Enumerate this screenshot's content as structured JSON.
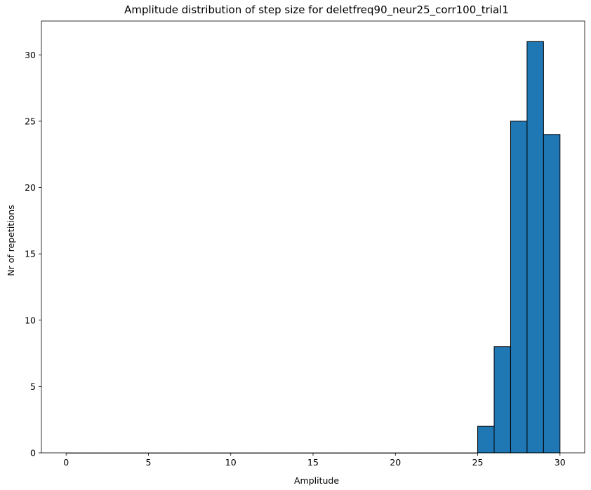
{
  "chart_data": {
    "type": "bar",
    "title": "Amplitude distribution of step size for deletfreq90_neur25_corr100_trial1",
    "xlabel": "Amplitude",
    "ylabel": "Nr of repetitions",
    "xlim": [
      -1.5,
      31.5
    ],
    "ylim": [
      0,
      32.55
    ],
    "xticks": [
      0,
      5,
      10,
      15,
      20,
      25,
      30
    ],
    "yticks": [
      0,
      5,
      10,
      15,
      20,
      25,
      30
    ],
    "grid": false,
    "bar_color": "#1f77b4",
    "edge_color": "#000000",
    "bins": [
      {
        "x0": 25,
        "x1": 26,
        "value": 2
      },
      {
        "x0": 26,
        "x1": 27,
        "value": 8
      },
      {
        "x0": 27,
        "x1": 28,
        "value": 25
      },
      {
        "x0": 28,
        "x1": 29,
        "value": 31
      },
      {
        "x0": 29,
        "x1": 30,
        "value": 24
      }
    ]
  }
}
